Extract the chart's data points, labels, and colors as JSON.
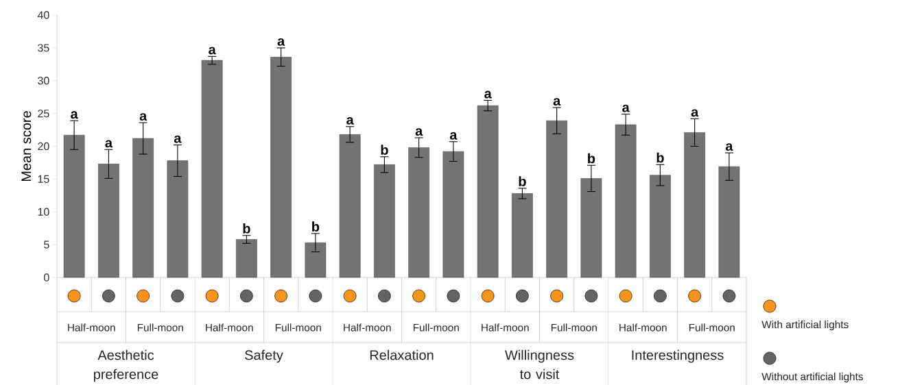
{
  "chart_data": {
    "type": "bar",
    "ylabel": "Mean score",
    "categories": [
      null,
      null,
      null,
      null,
      null,
      null,
      null,
      null,
      null,
      null,
      null,
      null,
      null,
      null,
      null,
      null,
      null,
      null,
      null,
      null
    ],
    "values": [
      21.7,
      17.3,
      21.2,
      17.8,
      33.1,
      5.8,
      33.6,
      5.3,
      21.8,
      17.2,
      19.8,
      19.2,
      26.2,
      12.8,
      23.9,
      15.1,
      23.3,
      15.6,
      22.1,
      16.9
    ],
    "errors": [
      2.2,
      2.2,
      2.4,
      2.4,
      0.6,
      0.6,
      1.4,
      1.4,
      1.2,
      1.2,
      1.5,
      1.5,
      0.8,
      0.8,
      2.0,
      2.0,
      1.6,
      1.6,
      2.1,
      2.1
    ],
    "value_labels": [
      "a",
      "a",
      "a",
      "a",
      "a",
      "b",
      "a",
      "b",
      "a",
      "b",
      "a",
      "a",
      "a",
      "b",
      "a",
      "b",
      "a",
      "b",
      "a",
      "a"
    ],
    "color": "#737373",
    "ylim": [
      0,
      40
    ],
    "yticks": [
      0,
      5,
      10,
      15,
      20,
      25,
      30,
      35,
      40
    ],
    "annotations": [
      "Half-moon",
      "Full-moon",
      "Half-moon",
      "Full-moon",
      "Half-moon",
      "Full-moon",
      "Half-moon",
      "Full-moon",
      "Half-moon",
      "Full-moon",
      "Aesthetic preference",
      "Safety",
      "Relaxation",
      "Willingness to visit",
      "Interestingness",
      "With artificial lights",
      "Without artificial lights"
    ]
  }
}
